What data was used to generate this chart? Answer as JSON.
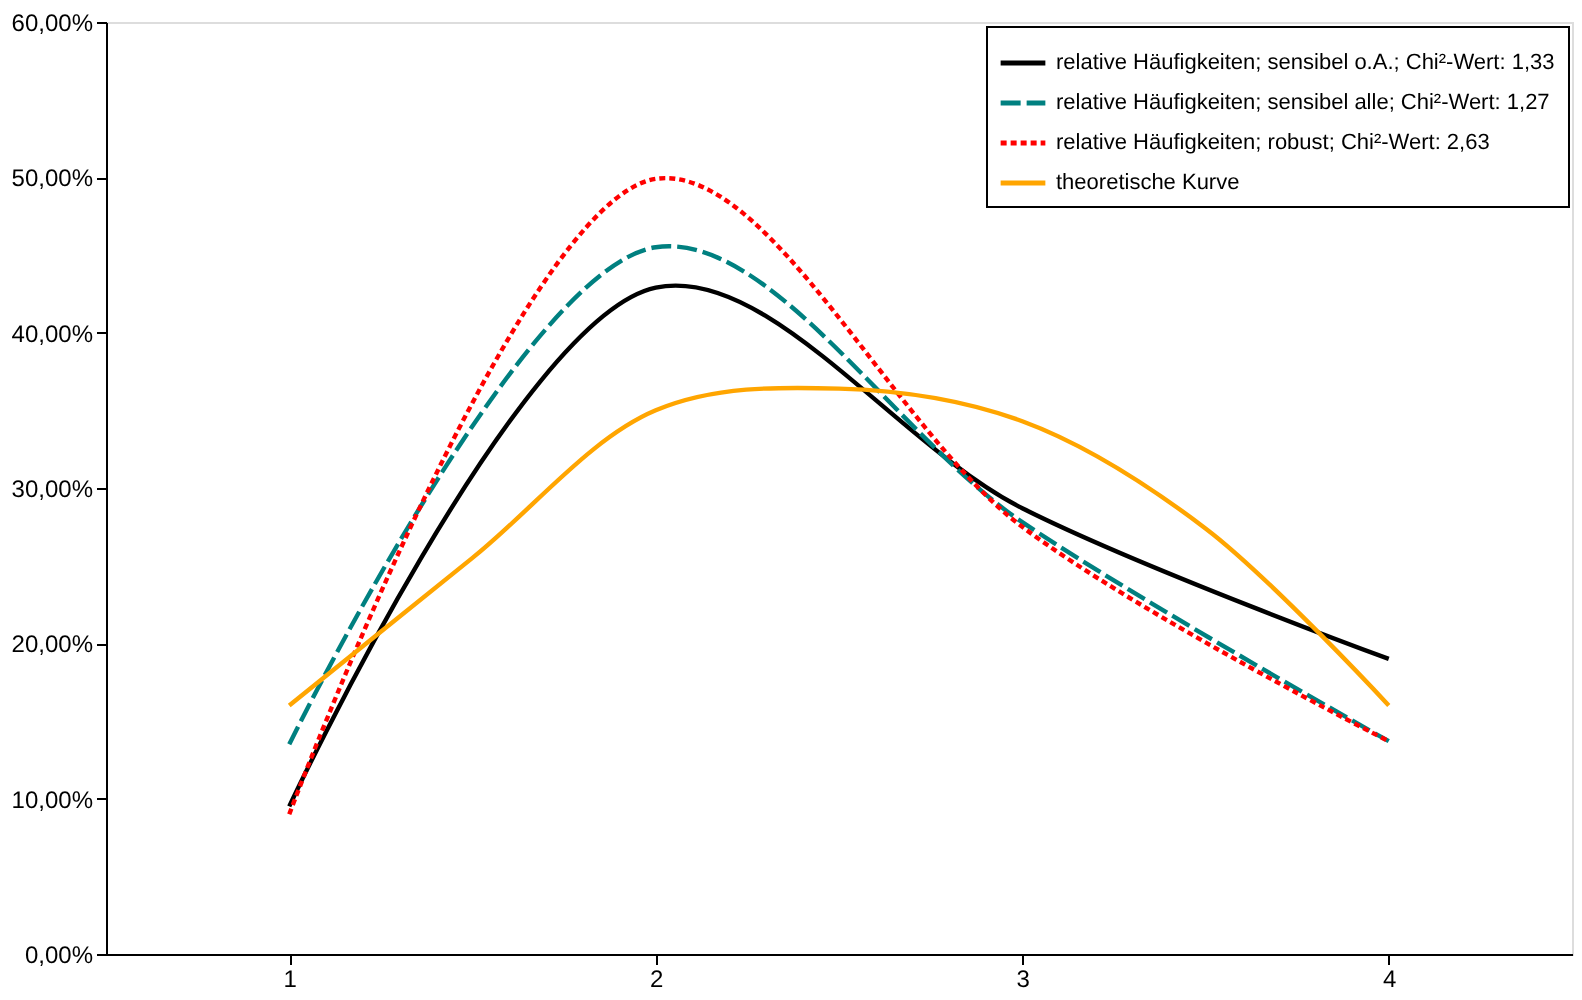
{
  "chart_data": {
    "type": "line",
    "xlim": [
      0.5,
      4.5
    ],
    "xticks": [
      1,
      2,
      3,
      4
    ],
    "ylim": [
      0,
      60
    ],
    "yticks": [
      {
        "value": 0,
        "label": "0,00%"
      },
      {
        "value": 10,
        "label": "10,00%"
      },
      {
        "value": 20,
        "label": "20,00%"
      },
      {
        "value": 30,
        "label": "30,00%"
      },
      {
        "value": 40,
        "label": "40,00%"
      },
      {
        "value": 50,
        "label": "50,00%"
      },
      {
        "value": 60,
        "label": "60,00%"
      }
    ],
    "grid": false,
    "legend": "top right",
    "marker": "none",
    "series": [
      {
        "name": "relative Häufigkeiten; sensibel o.A.; Chi²-Wert: 1,33",
        "color": "#000000",
        "line_style": "solid",
        "x": [
          1,
          2,
          3,
          4
        ],
        "values": [
          9.5,
          42.9,
          28.7,
          19.0
        ]
      },
      {
        "name": "relative Häufigkeiten; sensibel alle; Chi²-Wert: 1,27",
        "color": "#008080",
        "line_style": "dashed",
        "x": [
          1,
          2,
          3,
          4
        ],
        "values": [
          13.5,
          45.5,
          27.8,
          13.7
        ]
      },
      {
        "name": "relative Häufigkeiten; robust; Chi²-Wert: 2,63",
        "color": "#ff0000",
        "line_style": "dotted",
        "x": [
          1,
          2,
          3,
          4
        ],
        "values": [
          9.0,
          49.9,
          27.5,
          13.7
        ]
      },
      {
        "name": "theoretische Kurve",
        "color": "#ffa500",
        "line_style": "solid",
        "x": [
          1,
          1.5,
          2,
          2.5,
          3,
          3.5,
          4
        ],
        "values": [
          16.0,
          25.5,
          35.0,
          36.4,
          34.3,
          27.4,
          16.0
        ]
      }
    ]
  }
}
